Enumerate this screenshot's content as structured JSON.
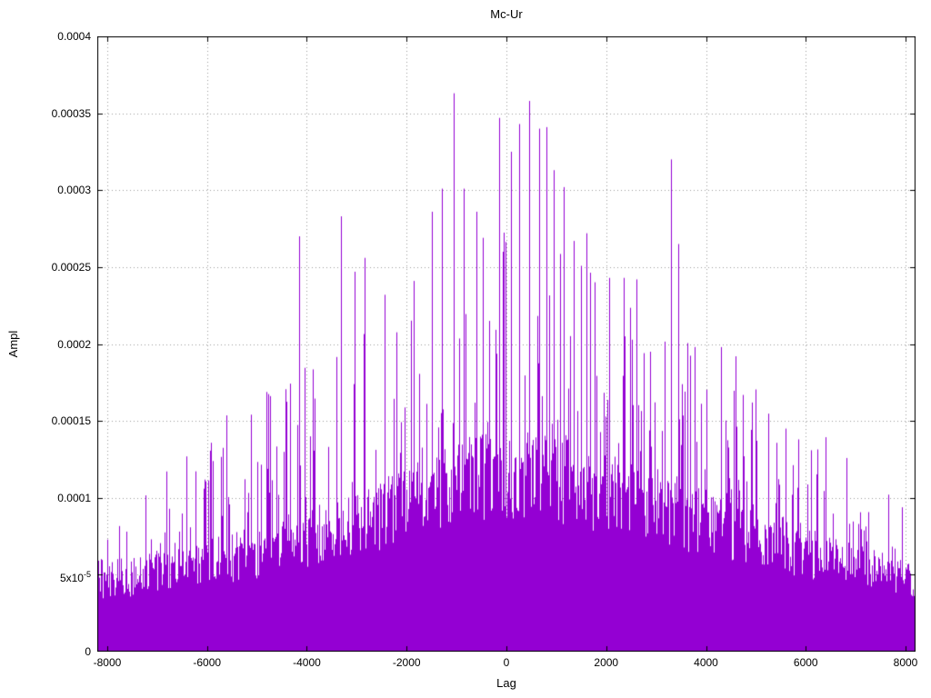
{
  "chart_data": {
    "type": "bar",
    "subtype": "impulses-dense-correlogram",
    "title": "Mc-Ur",
    "xlabel": "Lag",
    "ylabel": "Ampl",
    "xlim": [
      -8200,
      8200
    ],
    "ylim": [
      0,
      0.0004
    ],
    "grid": true,
    "legend": "none",
    "series_color": "#9400d3",
    "grid_color": "#9a9a9a",
    "axis_color": "#000000",
    "x_ticks": [
      {
        "value": -8000,
        "label": "-8000"
      },
      {
        "value": -6000,
        "label": "-6000"
      },
      {
        "value": -4000,
        "label": "-4000"
      },
      {
        "value": -2000,
        "label": "-2000"
      },
      {
        "value": 0,
        "label": "0"
      },
      {
        "value": 2000,
        "label": "2000"
      },
      {
        "value": 4000,
        "label": "4000"
      },
      {
        "value": 6000,
        "label": "6000"
      },
      {
        "value": 8000,
        "label": "8000"
      }
    ],
    "y_ticks": [
      {
        "value": 0,
        "label": "0"
      },
      {
        "value": 5e-05,
        "label": "5x10^-5"
      },
      {
        "value": 0.0001,
        "label": "0.0001"
      },
      {
        "value": 0.00015,
        "label": "0.00015"
      },
      {
        "value": 0.0002,
        "label": "0.0002"
      },
      {
        "value": 0.00025,
        "label": "0.00025"
      },
      {
        "value": 0.0003,
        "label": "0.0003"
      },
      {
        "value": 0.00035,
        "label": "0.00035"
      },
      {
        "value": 0.0004,
        "label": "0.0004"
      }
    ],
    "envelope": [
      {
        "lag": -8200,
        "dense": 4.8e-05,
        "peak": 8e-05
      },
      {
        "lag": -8000,
        "dense": 5e-05,
        "peak": 0.0001
      },
      {
        "lag": -7000,
        "dense": 5.5e-05,
        "peak": 0.00012
      },
      {
        "lag": -6000,
        "dense": 6.2e-05,
        "peak": 0.00014
      },
      {
        "lag": -5000,
        "dense": 7e-05,
        "peak": 0.00016
      },
      {
        "lag": -4500,
        "dense": 7.5e-05,
        "peak": 0.00019
      },
      {
        "lag": -4000,
        "dense": 8e-05,
        "peak": 0.00019
      },
      {
        "lag": -3000,
        "dense": 9e-05,
        "peak": 0.00021
      },
      {
        "lag": -2000,
        "dense": 0.000105,
        "peak": 0.000235
      },
      {
        "lag": -1000,
        "dense": 0.000118,
        "peak": 0.00028
      },
      {
        "lag": 0,
        "dense": 0.000125,
        "peak": 0.00029
      },
      {
        "lag": 1000,
        "dense": 0.000122,
        "peak": 0.00028
      },
      {
        "lag": 2000,
        "dense": 0.00011,
        "peak": 0.000235
      },
      {
        "lag": 3000,
        "dense": 0.0001,
        "peak": 0.00022
      },
      {
        "lag": 4000,
        "dense": 9e-05,
        "peak": 0.000195
      },
      {
        "lag": 5000,
        "dense": 8e-05,
        "peak": 0.00016
      },
      {
        "lag": 6000,
        "dense": 7e-05,
        "peak": 0.00014
      },
      {
        "lag": 7000,
        "dense": 6e-05,
        "peak": 0.000115
      },
      {
        "lag": 8000,
        "dense": 5.3e-05,
        "peak": 0.0001
      },
      {
        "lag": 8200,
        "dense": 5e-05,
        "peak": 8e-05
      }
    ],
    "notable_peaks": [
      {
        "lag": -4150,
        "ampl": 0.00027
      },
      {
        "lag": -3320,
        "ampl": 0.000283
      },
      {
        "lag": -3050,
        "ampl": 0.000247
      },
      {
        "lag": -2850,
        "ampl": 0.000256
      },
      {
        "lag": -2450,
        "ampl": 0.000232
      },
      {
        "lag": -1850,
        "ampl": 0.000241
      },
      {
        "lag": -1500,
        "ampl": 0.000286
      },
      {
        "lag": -1300,
        "ampl": 0.000301
      },
      {
        "lag": -1050,
        "ampl": 0.000363
      },
      {
        "lag": -850,
        "ampl": 0.000301
      },
      {
        "lag": -600,
        "ampl": 0.000286
      },
      {
        "lag": -150,
        "ampl": 0.000347
      },
      {
        "lag": 100,
        "ampl": 0.000325
      },
      {
        "lag": 250,
        "ampl": 0.000343
      },
      {
        "lag": 450,
        "ampl": 0.000358
      },
      {
        "lag": 650,
        "ampl": 0.00034
      },
      {
        "lag": 800,
        "ampl": 0.000341
      },
      {
        "lag": 950,
        "ampl": 0.000313
      },
      {
        "lag": 1150,
        "ampl": 0.000302
      },
      {
        "lag": 1350,
        "ampl": 0.000267
      },
      {
        "lag": 1600,
        "ampl": 0.000272
      },
      {
        "lag": 2050,
        "ampl": 0.000243
      },
      {
        "lag": 2350,
        "ampl": 0.000243
      },
      {
        "lag": 2600,
        "ampl": 0.000242
      },
      {
        "lag": 3300,
        "ampl": 0.00032
      },
      {
        "lag": 3450,
        "ampl": 0.000265
      },
      {
        "lag": 4300,
        "ampl": 0.000198
      },
      {
        "lag": 4600,
        "ampl": 0.000192
      },
      {
        "lag": 5600,
        "ampl": 0.000145
      },
      {
        "lag": 5850,
        "ampl": 0.000138
      }
    ]
  }
}
